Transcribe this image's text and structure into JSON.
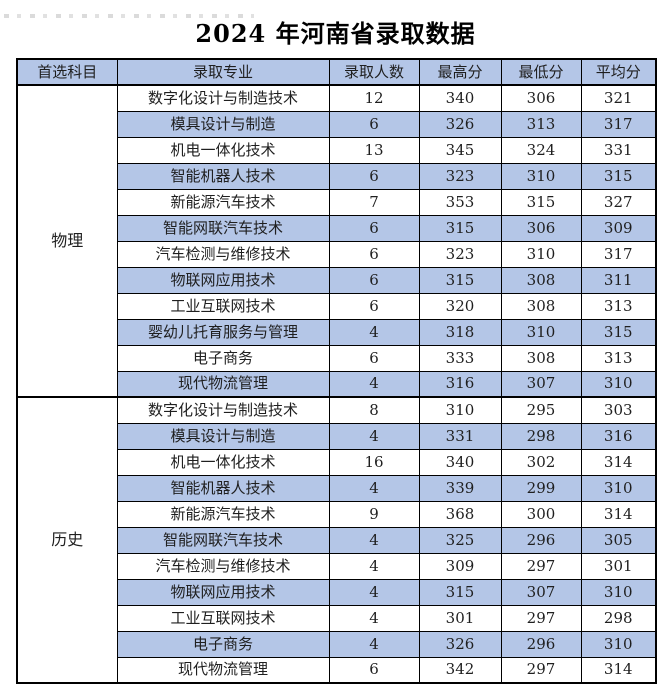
{
  "title": "2024 年河南省录取数据",
  "colors": {
    "header_bg": "#b4c6e7",
    "alt_row_bg": "#b4c6e7",
    "border": "#000000"
  },
  "table": {
    "headers": [
      "首选科目",
      "录取专业",
      "录取人数",
      "最高分",
      "最低分",
      "平均分"
    ],
    "groups": [
      {
        "subject": "物理",
        "rows": [
          {
            "major": "数字化设计与制造技术",
            "count": "12",
            "max": "340",
            "min": "306",
            "avg": "321"
          },
          {
            "major": "模具设计与制造",
            "count": "6",
            "max": "326",
            "min": "313",
            "avg": "317"
          },
          {
            "major": "机电一体化技术",
            "count": "13",
            "max": "345",
            "min": "324",
            "avg": "331"
          },
          {
            "major": "智能机器人技术",
            "count": "6",
            "max": "323",
            "min": "310",
            "avg": "315"
          },
          {
            "major": "新能源汽车技术",
            "count": "7",
            "max": "353",
            "min": "315",
            "avg": "327"
          },
          {
            "major": "智能网联汽车技术",
            "count": "6",
            "max": "315",
            "min": "306",
            "avg": "309"
          },
          {
            "major": "汽车检测与维修技术",
            "count": "6",
            "max": "323",
            "min": "310",
            "avg": "317"
          },
          {
            "major": "物联网应用技术",
            "count": "6",
            "max": "315",
            "min": "308",
            "avg": "311"
          },
          {
            "major": "工业互联网技术",
            "count": "6",
            "max": "320",
            "min": "308",
            "avg": "313"
          },
          {
            "major": "婴幼儿托育服务与管理",
            "count": "4",
            "max": "318",
            "min": "310",
            "avg": "315"
          },
          {
            "major": "电子商务",
            "count": "6",
            "max": "333",
            "min": "308",
            "avg": "313"
          },
          {
            "major": "现代物流管理",
            "count": "4",
            "max": "316",
            "min": "307",
            "avg": "310"
          }
        ]
      },
      {
        "subject": "历史",
        "rows": [
          {
            "major": "数字化设计与制造技术",
            "count": "8",
            "max": "310",
            "min": "295",
            "avg": "303"
          },
          {
            "major": "模具设计与制造",
            "count": "4",
            "max": "331",
            "min": "298",
            "avg": "316"
          },
          {
            "major": "机电一体化技术",
            "count": "16",
            "max": "340",
            "min": "302",
            "avg": "314"
          },
          {
            "major": "智能机器人技术",
            "count": "4",
            "max": "339",
            "min": "299",
            "avg": "310"
          },
          {
            "major": "新能源汽车技术",
            "count": "9",
            "max": "368",
            "min": "300",
            "avg": "314"
          },
          {
            "major": "智能网联汽车技术",
            "count": "4",
            "max": "325",
            "min": "296",
            "avg": "305"
          },
          {
            "major": "汽车检测与维修技术",
            "count": "4",
            "max": "309",
            "min": "297",
            "avg": "301"
          },
          {
            "major": "物联网应用技术",
            "count": "4",
            "max": "315",
            "min": "307",
            "avg": "310"
          },
          {
            "major": "工业互联网技术",
            "count": "4",
            "max": "301",
            "min": "297",
            "avg": "298"
          },
          {
            "major": "电子商务",
            "count": "4",
            "max": "326",
            "min": "296",
            "avg": "310"
          },
          {
            "major": "现代物流管理",
            "count": "6",
            "max": "342",
            "min": "297",
            "avg": "314"
          }
        ]
      }
    ]
  }
}
